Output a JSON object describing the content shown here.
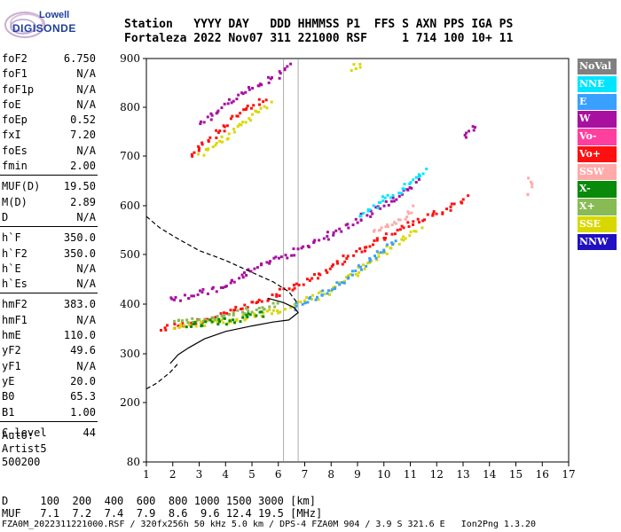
{
  "logo": {
    "line1": "Lowell",
    "line2": "DIGISONDE"
  },
  "header": {
    "line1": "Station   YYYY DAY   DDD HHMMSS P1  FFS S AXN PPS IGA PS",
    "line2": "Fortaleza 2022 Nov07 311 221000 RSF     1 714 100 10+ 11"
  },
  "params": [
    {
      "name": "foF2",
      "value": "6.750"
    },
    {
      "name": "foF1",
      "value": "N/A"
    },
    {
      "name": "foF1p",
      "value": "N/A"
    },
    {
      "name": "foE",
      "value": "N/A"
    },
    {
      "name": "foEp",
      "value": "0.52"
    },
    {
      "name": "fxI",
      "value": "7.20"
    },
    {
      "name": "foEs",
      "value": "N/A"
    },
    {
      "name": "fmin",
      "value": "2.00"
    },
    {
      "name": "MUF(D)",
      "value": "19.50"
    },
    {
      "name": "M(D)",
      "value": "2.89"
    },
    {
      "name": "D",
      "value": "N/A"
    },
    {
      "name": "h`F",
      "value": "350.0"
    },
    {
      "name": "h`F2",
      "value": "350.0"
    },
    {
      "name": "h`E",
      "value": "N/A"
    },
    {
      "name": "h`Es",
      "value": "N/A"
    },
    {
      "name": "hmF2",
      "value": "383.0"
    },
    {
      "name": "hmF1",
      "value": "N/A"
    },
    {
      "name": "hmE",
      "value": "110.0"
    },
    {
      "name": "yF2",
      "value": "49.6"
    },
    {
      "name": "yF1",
      "value": "N/A"
    },
    {
      "name": "yE",
      "value": "20.0"
    },
    {
      "name": "B0",
      "value": "65.3"
    },
    {
      "name": "B1",
      "value": "1.00"
    },
    {
      "name": "C-level",
      "value": "44"
    }
  ],
  "auto": {
    "line1": "Auto:",
    "line2": "Artist5",
    "line3": "500200"
  },
  "legend": [
    {
      "label": "NoVal",
      "bg": "#808080",
      "fg": "#ffffff"
    },
    {
      "label": "NNE",
      "bg": "#00e5ff",
      "fg": "#ffffff"
    },
    {
      "label": "E",
      "bg": "#3aa0ff",
      "fg": "#ffffff"
    },
    {
      "label": "W",
      "bg": "#a8109f",
      "fg": "#ffffff"
    },
    {
      "label": "Vo-",
      "bg": "#ff3fa0",
      "fg": "#ffffff"
    },
    {
      "label": "Vo+",
      "bg": "#ff1010",
      "fg": "#ffffff"
    },
    {
      "label": "SSW",
      "bg": "#ffaaaa",
      "fg": "#ffffff"
    },
    {
      "label": "X-",
      "bg": "#0a8a0a",
      "fg": "#ffffff"
    },
    {
      "label": "X+",
      "bg": "#88bb55",
      "fg": "#ffffff"
    },
    {
      "label": "SSE",
      "bg": "#d8d800",
      "fg": "#ffffff"
    },
    {
      "label": "NNW",
      "bg": "#2010c0",
      "fg": "#ffffff"
    }
  ],
  "footer": {
    "line1": "D     100  200  400  600  800 1000 1500 3000 [km]",
    "line2": "MUF   7.1  7.2  7.4  7.9  8.6  9.6 12.4 19.5 [MHz]",
    "line3": "FZA0M_2022311221000.RSF / 320fx256h 50 kHz 5.0 km / DPS-4 FZA0M 904 / 3.9 S 321.6 E   Ion2Png 1.3.20"
  },
  "chart_data": {
    "type": "scatter",
    "xlabel": "",
    "ylabel": "",
    "xlim": [
      1,
      17
    ],
    "ylim": [
      80,
      900
    ],
    "x_ticks": [
      "1",
      "2",
      "3",
      "4",
      "5",
      "6",
      "7",
      "8",
      "9",
      "10",
      "11",
      "12",
      "13",
      "14",
      "15",
      "16",
      "17"
    ],
    "y_ticks": [
      "80",
      "200",
      "300",
      "400",
      "500",
      "600",
      "700",
      "800",
      "900"
    ],
    "y_tick_values": [
      80,
      200,
      300,
      400,
      500,
      600,
      700,
      800,
      900
    ],
    "grid_x": [
      6.2,
      6.75
    ],
    "series": [
      {
        "name": "W",
        "color": "#a8109f",
        "segments": [
          [
            [
              1.8,
              410
            ],
            [
              3,
              425
            ],
            [
              4,
              440
            ],
            [
              5,
              470
            ],
            [
              6,
              495
            ],
            [
              7,
              518
            ],
            [
              8,
              545
            ],
            [
              9,
              575
            ],
            [
              10,
              605
            ],
            [
              11,
              640
            ],
            [
              11.3,
              655
            ]
          ],
          [
            [
              3,
              770
            ],
            [
              4,
              810
            ],
            [
              5,
              845
            ],
            [
              6,
              870
            ],
            [
              6.5,
              895
            ]
          ],
          [
            [
              13,
              740
            ],
            [
              13.5,
              768
            ]
          ]
        ]
      },
      {
        "name": "Vo+",
        "color": "#ff1010",
        "segments": [
          [
            [
              1.5,
              355
            ],
            [
              2.5,
              362
            ],
            [
              3.5,
              378
            ],
            [
              4.5,
              395
            ],
            [
              5.5,
              415
            ],
            [
              6.5,
              435
            ],
            [
              7.5,
              462
            ],
            [
              8.5,
              495
            ],
            [
              9.5,
              525
            ],
            [
              10.5,
              555
            ],
            [
              11.5,
              580
            ],
            [
              12.5,
              600
            ],
            [
              13.2,
              620
            ]
          ],
          [
            [
              2.6,
              700
            ],
            [
              3.5,
              745
            ],
            [
              4.5,
              790
            ],
            [
              5.5,
              825
            ]
          ]
        ]
      },
      {
        "name": "NNE",
        "color": "#00e5ff",
        "segments": [
          [
            [
              9,
              580
            ],
            [
              10,
              615
            ],
            [
              11,
              650
            ],
            [
              11.6,
              680
            ]
          ]
        ]
      },
      {
        "name": "SSE",
        "color": "#d8d800",
        "segments": [
          [
            [
              2,
              358
            ],
            [
              4,
              370
            ],
            [
              6,
              390
            ],
            [
              8,
              430
            ],
            [
              9.5,
              490
            ],
            [
              11.4,
              560
            ]
          ],
          [
            [
              3,
              705
            ],
            [
              4,
              740
            ],
            [
              5,
              785
            ],
            [
              5.7,
              815
            ]
          ],
          [
            [
              8.7,
              882
            ],
            [
              9.2,
              895
            ]
          ]
        ]
      },
      {
        "name": "E",
        "color": "#3aa0ff",
        "segments": [
          [
            [
              6.5,
              395
            ],
            [
              7.5,
              420
            ],
            [
              8.5,
              450
            ],
            [
              9.5,
              495
            ],
            [
              10.5,
              530
            ]
          ]
        ]
      },
      {
        "name": "X+",
        "color": "#88bb55",
        "segments": [
          [
            [
              2,
              365
            ],
            [
              3,
              372
            ],
            [
              4,
              380
            ],
            [
              5,
              392
            ],
            [
              6,
              405
            ]
          ]
        ]
      },
      {
        "name": "SSW",
        "color": "#ffaaaa",
        "segments": [
          [
            [
              9.5,
              545
            ],
            [
              10.5,
              575
            ],
            [
              11.2,
              600
            ]
          ],
          [
            [
              15.5,
              625
            ],
            [
              15.5,
              660
            ]
          ]
        ]
      },
      {
        "name": "X-",
        "color": "#0a8a0a",
        "segments": [
          [
            [
              2.5,
              360
            ],
            [
              4,
              368
            ],
            [
              5.5,
              385
            ]
          ]
        ]
      }
    ],
    "profile": {
      "solid": [
        [
          1.9,
          280
        ],
        [
          2.2,
          298
        ],
        [
          2.6,
          312
        ],
        [
          3.2,
          330
        ],
        [
          4.0,
          345
        ],
        [
          5.0,
          356
        ],
        [
          5.8,
          364
        ],
        [
          6.4,
          368
        ],
        [
          6.75,
          383
        ],
        [
          6.6,
          393
        ],
        [
          6.2,
          403
        ],
        [
          5.6,
          412
        ]
      ],
      "dashed_upper": [
        [
          1.0,
          578
        ],
        [
          1.5,
          555
        ],
        [
          2.2,
          532
        ],
        [
          3.0,
          508
        ],
        [
          4.0,
          488
        ],
        [
          5.0,
          464
        ],
        [
          5.8,
          445
        ],
        [
          6.4,
          425
        ],
        [
          6.75,
          400
        ]
      ],
      "dashed_lower": [
        [
          1.0,
          228
        ],
        [
          1.4,
          240
        ],
        [
          1.9,
          262
        ],
        [
          2.2,
          280
        ]
      ]
    }
  }
}
